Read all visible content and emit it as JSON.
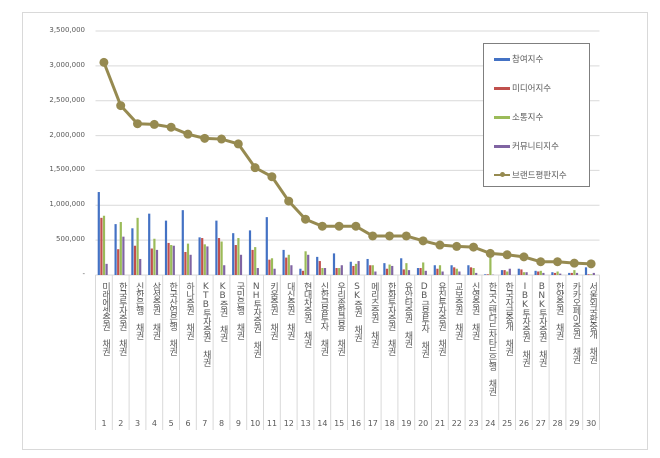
{
  "chart_data": {
    "type": "bar",
    "title": "",
    "xlabel": "",
    "ylabel": "",
    "ylim": [
      0,
      3500000
    ],
    "yticks": [
      "-",
      "500,000",
      "1,000,000",
      "1,500,000",
      "2,000,000",
      "2,500,000",
      "3,000,000",
      "3,500,000"
    ],
    "grid": true,
    "legend_position": "right",
    "numbers": [
      "1",
      "2",
      "3",
      "4",
      "5",
      "6",
      "7",
      "8",
      "9",
      "10",
      "11",
      "12",
      "13",
      "14",
      "15",
      "16",
      "17",
      "18",
      "19",
      "20",
      "21",
      "22",
      "23",
      "24",
      "25",
      "26",
      "27",
      "28",
      "29",
      "30"
    ],
    "categories": [
      "미래에셋증권 채권",
      "한국투자증권 채권",
      "신한은행 채권",
      "삼성증권 채권",
      "한국산업은행 채권",
      "하나증권 채권",
      "KTB투자증권 채권",
      "KB증권 채권",
      "국민은행 채권",
      "NH투자증권 채권",
      "키움증권 채권",
      "대신증권 채권",
      "현대차증권 채권",
      "신한금융투자 채권",
      "우리종합금융 채권",
      "SK증권 채권",
      "메리츠증권 채권",
      "한화투자증권 채권",
      "유안타증권 채권",
      "DB금융투자 채권",
      "유진투자증권 채권",
      "교보증권 채권",
      "신영증권 채권",
      "한국스탠다드차타드은행 채권",
      "한국자금중개 채권",
      "IBK투자증권 채권",
      "BNK투자증권 채권",
      "한양증권 채권",
      "카카오페이증권 채권",
      "서울외국환중개 채권"
    ],
    "series": [
      {
        "name": "참여지수",
        "type": "bar",
        "color": "#4472c4",
        "values": [
          1190000,
          730000,
          670000,
          880000,
          780000,
          930000,
          540000,
          780000,
          600000,
          640000,
          830000,
          360000,
          90000,
          260000,
          310000,
          190000,
          230000,
          170000,
          240000,
          100000,
          140000,
          140000,
          140000,
          10000,
          70000,
          90000,
          60000,
          40000,
          30000,
          110000
        ]
      },
      {
        "name": "미디어지수",
        "type": "bar",
        "color": "#c0504d",
        "values": [
          820000,
          370000,
          420000,
          380000,
          460000,
          330000,
          530000,
          530000,
          430000,
          360000,
          220000,
          250000,
          60000,
          200000,
          100000,
          130000,
          140000,
          90000,
          80000,
          100000,
          90000,
          110000,
          110000,
          10000,
          70000,
          80000,
          50000,
          30000,
          30000,
          10000
        ]
      },
      {
        "name": "소통지수",
        "type": "bar",
        "color": "#9bbb59",
        "values": [
          850000,
          760000,
          820000,
          520000,
          430000,
          450000,
          440000,
          480000,
          530000,
          400000,
          240000,
          290000,
          340000,
          100000,
          100000,
          160000,
          140000,
          150000,
          170000,
          180000,
          140000,
          90000,
          100000,
          300000,
          50000,
          40000,
          60000,
          50000,
          70000,
          10000
        ]
      },
      {
        "name": "커뮤니티지수",
        "type": "bar",
        "color": "#8064a2",
        "values": [
          160000,
          550000,
          230000,
          360000,
          420000,
          290000,
          410000,
          140000,
          290000,
          100000,
          90000,
          140000,
          290000,
          100000,
          140000,
          200000,
          50000,
          130000,
          70000,
          60000,
          50000,
          50000,
          30000,
          5000,
          90000,
          40000,
          30000,
          20000,
          30000,
          30000
        ]
      },
      {
        "name": "브랜드평판지수",
        "type": "line",
        "color": "#968a50",
        "values": [
          3050000,
          2430000,
          2170000,
          2160000,
          2120000,
          2020000,
          1960000,
          1950000,
          1880000,
          1540000,
          1410000,
          1060000,
          800000,
          700000,
          700000,
          700000,
          560000,
          560000,
          560000,
          490000,
          430000,
          410000,
          400000,
          310000,
          290000,
          260000,
          190000,
          190000,
          170000,
          160000
        ]
      }
    ]
  }
}
